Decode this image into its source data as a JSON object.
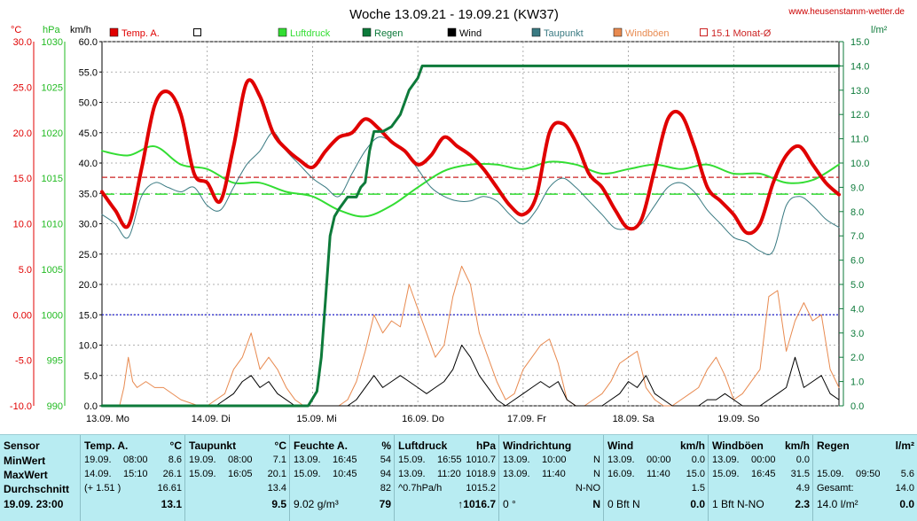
{
  "title": "Woche 13.09.21 - 19.09.21 (KW37)",
  "site_url": "www.heusenstamm-wetter.de",
  "units_left": [
    "°C",
    "hPa",
    "km/h"
  ],
  "units_right": "l/m²",
  "legend": [
    {
      "label": "Temp. A.",
      "color": "#e00000",
      "type": "box"
    },
    {
      "label": "",
      "color": "#000000",
      "type": "hollow"
    },
    {
      "label": "Luftdruck",
      "color": "#33dd33",
      "type": "box"
    },
    {
      "label": "Regen",
      "color": "#0d7a3a",
      "type": "box"
    },
    {
      "label": "Wind",
      "color": "#000000",
      "type": "box"
    },
    {
      "label": "Taupunkt",
      "color": "#3a7a82",
      "type": "box"
    },
    {
      "label": "Windböen",
      "color": "#e88a50",
      "type": "box"
    },
    {
      "label": "15.1 Monat-Ø",
      "color": "#cc2222",
      "type": "hollow"
    }
  ],
  "chart_data": {
    "type": "line",
    "axes": {
      "temp_c": {
        "ticks": [
          "30.0",
          "25.0",
          "20.0",
          "15.0",
          "10.0",
          "5.0",
          "0.00",
          "-5.0",
          "-10.0"
        ],
        "range": [
          -10,
          30
        ],
        "color": "#e00000"
      },
      "pressure_hpa": {
        "ticks": [
          "1030",
          "1025",
          "1020",
          "1015",
          "1010",
          "1005",
          "1000",
          "995",
          "990"
        ],
        "range": [
          990,
          1030
        ],
        "color": "#22bb22"
      },
      "wind_kmh": {
        "ticks": [
          "60.0",
          "55.0",
          "50.0",
          "45.0",
          "40.0",
          "35.0",
          "30.0",
          "25.0",
          "20.0",
          "15.0",
          "10.0",
          "5.0",
          "0.0"
        ],
        "range": [
          0,
          60
        ],
        "color": "#000000"
      },
      "rain_lm2": {
        "ticks": [
          "15.0",
          "14.0",
          "13.0",
          "12.0",
          "11.0",
          "10.0",
          "9.0",
          "8.0",
          "7.0",
          "6.0",
          "5.0",
          "4.0",
          "3.0",
          "2.0",
          "1.0",
          "0.0"
        ],
        "range": [
          0,
          15
        ],
        "color": "#0d7a3a"
      }
    },
    "x_labels": [
      "13.09. Mo",
      "14.09. Di",
      "15.09. Mi",
      "16.09. Do",
      "17.09. Fr",
      "18.09. Sa",
      "19.09. So"
    ],
    "x_range_hours": [
      0,
      168
    ],
    "reference_lines": [
      {
        "name": "15.1 Monat-Ø",
        "axis": "temp_c",
        "value": 15.1,
        "color": "#cc2222",
        "dash": "6,3"
      },
      {
        "axis": "temp_c",
        "value": 0,
        "color": "#2222cc",
        "dash": "2,2"
      },
      {
        "axis": "pressure_hpa",
        "value": 1013.25,
        "color": "#33dd33",
        "dash": "14,6"
      }
    ],
    "series": [
      {
        "name": "Windböen",
        "axis": "wind_kmh",
        "color": "#e88a50",
        "width": 1,
        "x": [
          0,
          2,
          4,
          5,
          6,
          7,
          8,
          10,
          12,
          14,
          18,
          22,
          24,
          26,
          28,
          30,
          32,
          34,
          36,
          38,
          40,
          42,
          44,
          46,
          48,
          50,
          52,
          54,
          56,
          58,
          60,
          62,
          64,
          66,
          68,
          70,
          72,
          74,
          76,
          78,
          80,
          82,
          84,
          86,
          88,
          90,
          92,
          94,
          96,
          98,
          100,
          102,
          104,
          106,
          108,
          110,
          112,
          114,
          116,
          118,
          120,
          122,
          124,
          126,
          128,
          130,
          132,
          134,
          136,
          138,
          140,
          142,
          144,
          146,
          148,
          150,
          152,
          154,
          156,
          158,
          160,
          162,
          164,
          166,
          168
        ],
        "y": [
          0,
          0,
          0,
          3,
          8,
          4,
          3,
          4,
          3,
          3,
          1,
          0,
          0,
          1,
          2,
          6,
          8,
          12,
          6,
          8,
          6,
          3,
          1,
          0,
          0,
          0,
          0,
          0,
          1,
          4,
          9,
          15,
          12,
          14,
          13,
          20,
          16,
          12,
          8,
          10,
          18,
          23,
          20,
          12,
          8,
          4,
          1,
          2,
          6,
          8,
          10,
          11,
          7,
          1,
          0,
          0,
          1,
          2,
          4,
          7,
          8,
          9,
          3,
          1,
          0,
          0,
          1,
          2,
          3,
          6,
          8,
          5,
          1,
          2,
          4,
          6,
          18,
          19,
          9,
          14,
          17,
          14,
          15,
          6,
          3
        ]
      },
      {
        "name": "Wind",
        "axis": "wind_kmh",
        "color": "#000000",
        "width": 1,
        "x": [
          0,
          22,
          24,
          26,
          28,
          30,
          32,
          34,
          36,
          38,
          40,
          44,
          46,
          48,
          54,
          56,
          58,
          60,
          62,
          64,
          66,
          68,
          70,
          72,
          74,
          76,
          78,
          80,
          82,
          84,
          86,
          88,
          90,
          92,
          94,
          96,
          98,
          100,
          102,
          104,
          106,
          108,
          110,
          112,
          114,
          116,
          118,
          120,
          122,
          124,
          126,
          128,
          130,
          132,
          134,
          136,
          138,
          140,
          142,
          144,
          146,
          148,
          150,
          152,
          154,
          156,
          158,
          160,
          162,
          164,
          166,
          168
        ],
        "y": [
          0,
          0,
          0,
          0,
          1,
          2,
          4,
          5,
          3,
          4,
          2,
          0,
          0,
          0,
          0,
          0,
          1,
          3,
          5,
          3,
          4,
          5,
          4,
          3,
          2,
          3,
          4,
          6,
          10,
          8,
          5,
          3,
          1,
          0,
          1,
          2,
          3,
          4,
          3,
          4,
          1,
          0,
          0,
          0,
          0,
          1,
          2,
          4,
          3,
          5,
          2,
          1,
          0,
          0,
          0,
          0,
          1,
          1,
          2,
          1,
          0,
          0,
          0,
          1,
          2,
          3,
          8,
          3,
          4,
          5,
          2,
          1
        ]
      },
      {
        "name": "Luftdruck",
        "axis": "pressure_hpa",
        "color": "#33dd33",
        "width": 2,
        "x": [
          0,
          6,
          12,
          18,
          24,
          30,
          36,
          42,
          48,
          54,
          60,
          66,
          72,
          78,
          84,
          90,
          96,
          102,
          108,
          114,
          120,
          126,
          132,
          138,
          144,
          150,
          156,
          162,
          168
        ],
        "y": [
          1018,
          1017.5,
          1018.5,
          1016.5,
          1016,
          1014.5,
          1014.5,
          1013.5,
          1013,
          1011.5,
          1010.8,
          1012,
          1014,
          1015.8,
          1016.5,
          1016.5,
          1016,
          1016.8,
          1016.5,
          1015.5,
          1016,
          1016.5,
          1016,
          1016.5,
          1015.5,
          1015.5,
          1014.5,
          1014.8,
          1016.5
        ]
      },
      {
        "name": "Taupunkt",
        "axis": "temp_c",
        "color": "#3a7a82",
        "width": 1,
        "x": [
          0,
          3,
          6,
          9,
          12,
          15,
          18,
          21,
          24,
          27,
          30,
          33,
          36,
          39,
          42,
          45,
          48,
          51,
          54,
          57,
          60,
          63,
          66,
          69,
          72,
          75,
          78,
          81,
          84,
          87,
          90,
          93,
          96,
          99,
          102,
          105,
          108,
          111,
          114,
          117,
          120,
          123,
          126,
          129,
          132,
          135,
          138,
          141,
          144,
          147,
          150,
          153,
          156,
          159,
          162,
          165,
          168
        ],
        "y": [
          11,
          10,
          8.5,
          13,
          14.5,
          14,
          13.5,
          14,
          12,
          11.5,
          14,
          16.5,
          18,
          20,
          18,
          16.5,
          15,
          14,
          13,
          15.5,
          18,
          19.5,
          19,
          18,
          16,
          14,
          13,
          12.5,
          12.5,
          13,
          12.5,
          11,
          10,
          11.5,
          14,
          15,
          14,
          12.5,
          11,
          9.5,
          9.5,
          10,
          12,
          14,
          14.5,
          13.5,
          11.5,
          10,
          8.5,
          8,
          7,
          7,
          12,
          13,
          12,
          10.5,
          9.6
        ]
      },
      {
        "name": "Temp. A.",
        "axis": "temp_c",
        "color": "#e00000",
        "width": 4,
        "x": [
          0,
          3,
          6,
          9,
          12,
          15,
          18,
          21,
          24,
          27,
          30,
          33,
          36,
          39,
          42,
          45,
          48,
          51,
          54,
          57,
          60,
          63,
          66,
          69,
          72,
          75,
          78,
          81,
          84,
          87,
          90,
          93,
          96,
          99,
          102,
          105,
          108,
          111,
          114,
          117,
          120,
          123,
          126,
          129,
          132,
          135,
          138,
          141,
          144,
          147,
          150,
          153,
          156,
          159,
          162,
          165,
          168
        ],
        "y": [
          13.5,
          11.5,
          9.8,
          16,
          23,
          24.5,
          22,
          15.5,
          14.5,
          12.5,
          18.5,
          25.5,
          24,
          20,
          18.2,
          17,
          16.2,
          18,
          19.5,
          20,
          21.5,
          20.5,
          19,
          18,
          16.5,
          17.5,
          19.5,
          18.5,
          17.5,
          16,
          14,
          12,
          11,
          13,
          20,
          21,
          19,
          15.5,
          14,
          11.5,
          9.5,
          10.5,
          16,
          21.5,
          22,
          18.5,
          14,
          12.5,
          11,
          9,
          10,
          14.5,
          17.5,
          18.5,
          16.5,
          14.5,
          13.2
        ]
      },
      {
        "name": "Regen",
        "axis": "rain_lm2",
        "color": "#0d7a3a",
        "width": 3,
        "x": [
          0,
          45,
          47,
          49,
          50,
          51,
          52,
          53,
          54,
          56,
          58,
          59,
          60,
          61,
          62,
          63,
          64,
          66,
          68,
          70,
          72,
          73,
          168
        ],
        "y": [
          0,
          0,
          0,
          0.6,
          2,
          4.5,
          7,
          7.8,
          8.1,
          8.6,
          8.6,
          9,
          9.2,
          10.5,
          11.3,
          11.3,
          11.3,
          11.5,
          12,
          13,
          13.5,
          14,
          14
        ]
      }
    ]
  },
  "stats": [
    {
      "header": [
        "Sensor",
        ""
      ],
      "rows": [
        [
          "MinWert",
          "",
          ""
        ],
        [
          "MaxWert",
          "",
          ""
        ],
        [
          "Durchschnitt",
          "",
          ""
        ],
        [
          "19.09. 23:00",
          "",
          ""
        ]
      ]
    },
    {
      "header": [
        "Temp. A.",
        "°C"
      ],
      "rows": [
        [
          "19.09.",
          "08:00",
          "8.6"
        ],
        [
          "14.09.",
          "15:10",
          "26.1"
        ],
        [
          "(+ 1.51 )",
          "",
          "16.61"
        ],
        [
          "",
          "",
          "13.1"
        ]
      ]
    },
    {
      "header": [
        "Taupunkt",
        "°C"
      ],
      "rows": [
        [
          "19.09.",
          "08:00",
          "7.1"
        ],
        [
          "15.09.",
          "16:05",
          "20.1"
        ],
        [
          "",
          "",
          "13.4"
        ],
        [
          "",
          "",
          "9.5"
        ]
      ]
    },
    {
      "header": [
        "Feuchte A.",
        "%"
      ],
      "rows": [
        [
          "13.09.",
          "16:45",
          "54"
        ],
        [
          "15.09.",
          "10:45",
          "94"
        ],
        [
          "",
          "",
          "82"
        ],
        [
          "9.02 g/m³",
          "",
          "79"
        ]
      ]
    },
    {
      "header": [
        "Luftdruck",
        "hPa"
      ],
      "rows": [
        [
          "15.09.",
          "16:55",
          "1010.7"
        ],
        [
          "13.09.",
          "11:20",
          "1018.9"
        ],
        [
          "^0.7hPa/h",
          "",
          "1015.2"
        ],
        [
          "",
          "",
          "↑1016.7"
        ]
      ]
    },
    {
      "header": [
        "Windrichtung",
        ""
      ],
      "rows": [
        [
          "13.09.",
          "10:00",
          "N"
        ],
        [
          "13.09.",
          "11:40",
          "N"
        ],
        [
          "",
          "",
          "N-NO"
        ],
        [
          "0 °",
          "",
          "N"
        ]
      ]
    },
    {
      "header": [
        "Wind",
        "km/h"
      ],
      "rows": [
        [
          "13.09.",
          "00:00",
          "0.0"
        ],
        [
          "16.09.",
          "11:40",
          "15.0"
        ],
        [
          "",
          "",
          "1.5"
        ],
        [
          "0 Bft N",
          "",
          "0.0"
        ]
      ]
    },
    {
      "header": [
        "Windböen",
        "km/h"
      ],
      "rows": [
        [
          "13.09.",
          "00:00",
          "0.0"
        ],
        [
          "15.09.",
          "16:45",
          "31.5"
        ],
        [
          "",
          "",
          "4.9"
        ],
        [
          "1 Bft N-NO",
          "",
          "2.3"
        ]
      ]
    },
    {
      "header": [
        "Regen",
        "l/m²"
      ],
      "rows": [
        [
          "",
          "",
          ""
        ],
        [
          "15.09.",
          "09:50",
          "5.6"
        ],
        [
          "Gesamt:",
          "",
          "14.0"
        ],
        [
          "14.0 l/m²",
          "",
          "0.0"
        ]
      ]
    }
  ]
}
